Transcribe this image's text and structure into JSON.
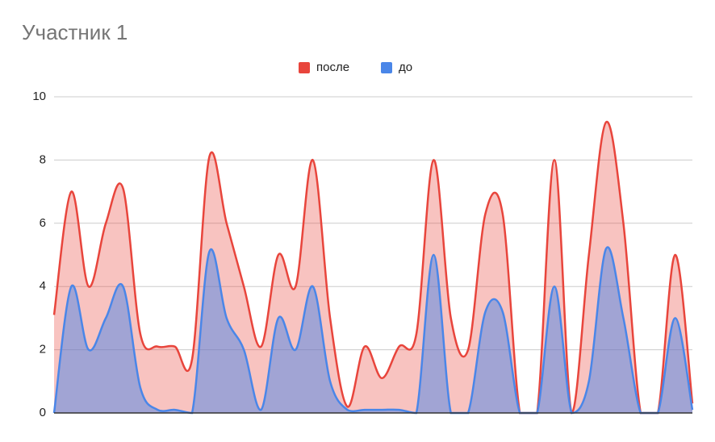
{
  "chart_data": {
    "type": "area",
    "title": "Участник 1",
    "categories": [
      null,
      null,
      null,
      null,
      null,
      null,
      null,
      null,
      null,
      null,
      null,
      null,
      null,
      null,
      null,
      null,
      null,
      null,
      null,
      null,
      null,
      null,
      null,
      null,
      null,
      null,
      null,
      null,
      null,
      null,
      null,
      null,
      null,
      null,
      null,
      null,
      null,
      null
    ],
    "series": [
      {
        "name": "после",
        "color": "#e8453c",
        "values": [
          3.1,
          7,
          4,
          6,
          7.1,
          2.5,
          2.1,
          2.1,
          1.7,
          8.1,
          6,
          4,
          2.1,
          5,
          4,
          8,
          3,
          0.2,
          2.1,
          1.1,
          2.1,
          2.5,
          8,
          3,
          2,
          6.3,
          6.3,
          0,
          0,
          8,
          0,
          5,
          9.2,
          6,
          0,
          0,
          5,
          0.3
        ]
      },
      {
        "name": "до",
        "color": "#4a86e8",
        "values": [
          0,
          4,
          2,
          3,
          4,
          0.8,
          0.1,
          0.1,
          0,
          5.1,
          3,
          2,
          0.1,
          3,
          2,
          4,
          1,
          0.1,
          0.1,
          0.1,
          0.1,
          0,
          5,
          0,
          0,
          3.2,
          3.2,
          0,
          0,
          4,
          0,
          1,
          5.2,
          3,
          0,
          0,
          3,
          0.1
        ]
      }
    ],
    "ylim": [
      0,
      10
    ],
    "yticks": [
      0,
      2,
      4,
      6,
      8,
      10
    ],
    "grid": true,
    "legend": "top"
  }
}
